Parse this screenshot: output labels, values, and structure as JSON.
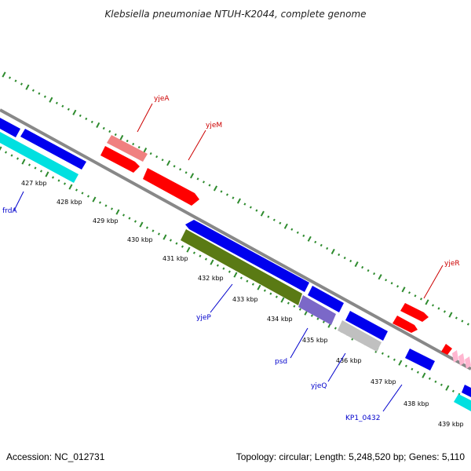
{
  "title": "Klebsiella pneumoniae NTUH-K2044, complete genome",
  "footer": {
    "accession": "Accession: NC_012731",
    "topology": "Topology: circular; Length: 5,248,520 bp; Genes: 5,110"
  },
  "colors": {
    "backbone": "#888888",
    "dots_forward": "#2e8b2e",
    "dots_reverse": "#2e8b2e",
    "tick_mark": "#2e8b2e",
    "label_forward": "#cc0000",
    "label_reverse": "#0000cc",
    "gene_red": "#ff0000",
    "gene_pink": "#f08080",
    "gene_blue": "#0000ee",
    "gene_cyan": "#00e0e0",
    "gene_olive": "#5a7a14",
    "gene_lavender": "#7b68c8",
    "gene_gray": "#c0c0c0",
    "gene_lightpink": "#ffb6d0"
  },
  "ticks": [
    "427 kbp",
    "428 kbp",
    "429 kbp",
    "430 kbp",
    "431 kbp",
    "432 kbp",
    "433 kbp",
    "434 kbp",
    "435 kbp",
    "436 kbp",
    "437 kbp",
    "438 kbp",
    "439 kbp"
  ],
  "gene_labels": {
    "yjeA": "yjeA",
    "yjeM": "yjeM",
    "yjeR": "yjeR",
    "frdA": "frdA",
    "yjeP": "yjeP",
    "psd": "psd",
    "yjeQ": "yjeQ",
    "KP1_0432": "KP1_0432"
  }
}
